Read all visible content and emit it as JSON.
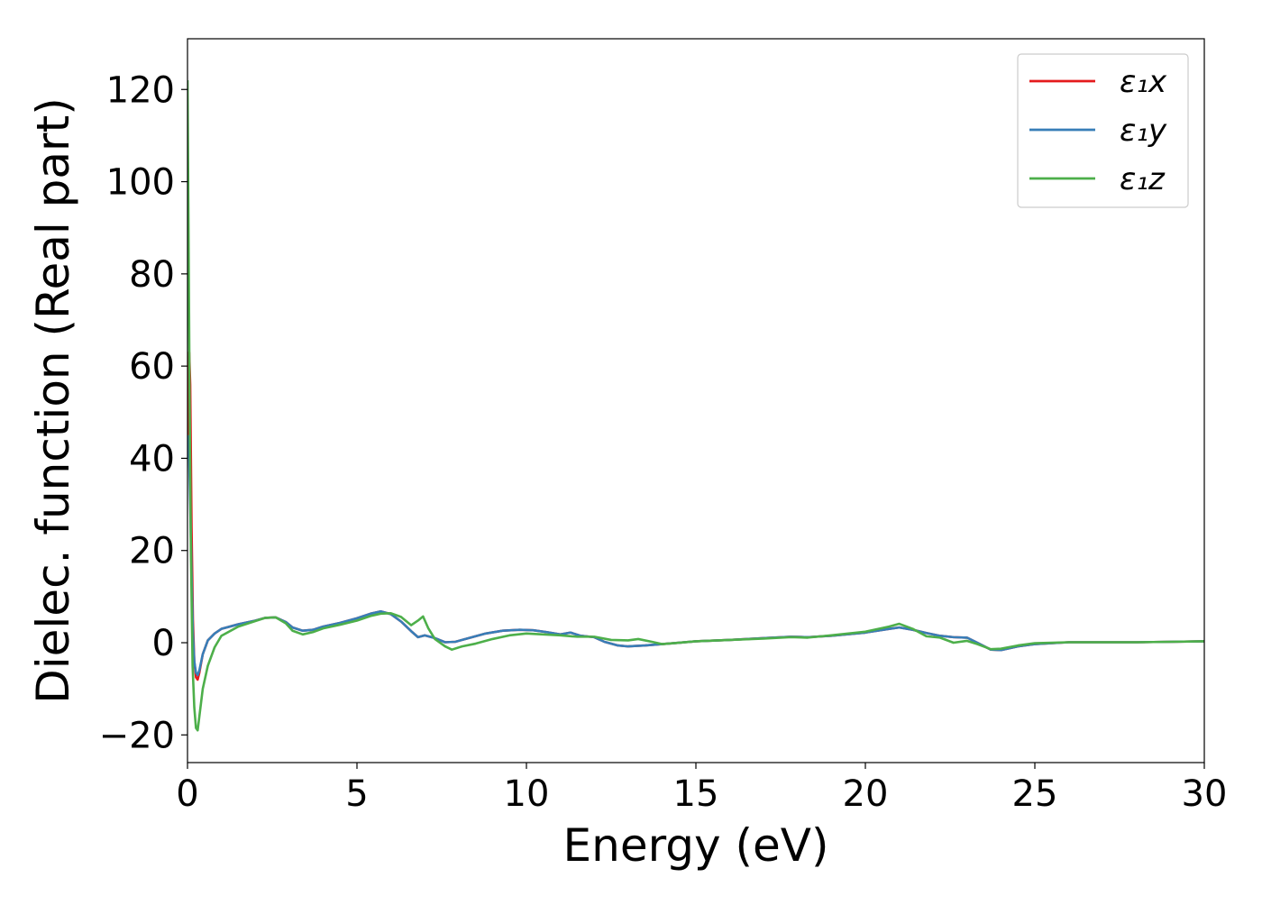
{
  "chart_data": {
    "type": "line",
    "title": "",
    "xlabel": "Energy (eV)",
    "ylabel": "Dielec. function (Real part)",
    "xlim": [
      0,
      30
    ],
    "ylim": [
      -26,
      131
    ],
    "xticks": [
      0,
      5,
      10,
      15,
      20,
      25,
      30
    ],
    "xtick_labels": [
      "0",
      "5",
      "10",
      "15",
      "20",
      "25",
      "30"
    ],
    "yticks": [
      -20,
      0,
      20,
      40,
      60,
      80,
      100,
      120
    ],
    "ytick_labels": [
      "−20",
      "0",
      "20",
      "40",
      "60",
      "80",
      "100",
      "120"
    ],
    "grid": false,
    "legend_position": "top-right",
    "series": [
      {
        "name": "ε₁x",
        "color": "#e41a1c",
        "points": [
          [
            0.02,
            45
          ],
          [
            0.05,
            63
          ],
          [
            0.08,
            56
          ],
          [
            0.12,
            25
          ],
          [
            0.16,
            5
          ],
          [
            0.2,
            -4
          ],
          [
            0.25,
            -7.5
          ],
          [
            0.3,
            -8
          ],
          [
            0.35,
            -6.5
          ],
          [
            0.45,
            -2.5
          ],
          [
            0.6,
            0.5
          ],
          [
            0.8,
            2
          ],
          [
            1.0,
            3
          ],
          [
            1.5,
            4
          ],
          [
            2.0,
            4.8
          ],
          [
            2.3,
            5.4
          ],
          [
            2.6,
            5.5
          ],
          [
            2.9,
            4.5
          ],
          [
            3.1,
            3.3
          ],
          [
            3.4,
            2.6
          ],
          [
            3.7,
            2.8
          ],
          [
            4.0,
            3.5
          ],
          [
            4.5,
            4.3
          ],
          [
            5.0,
            5.3
          ],
          [
            5.4,
            6.3
          ],
          [
            5.7,
            6.8
          ],
          [
            6.0,
            6.2
          ],
          [
            6.3,
            4.6
          ],
          [
            6.6,
            2.5
          ],
          [
            6.8,
            1.2
          ],
          [
            7.0,
            1.6
          ],
          [
            7.3,
            1.0
          ],
          [
            7.6,
            0.1
          ],
          [
            7.9,
            0.2
          ],
          [
            8.3,
            1.0
          ],
          [
            8.8,
            2.0
          ],
          [
            9.3,
            2.6
          ],
          [
            9.8,
            2.8
          ],
          [
            10.2,
            2.7
          ],
          [
            10.6,
            2.3
          ],
          [
            11.0,
            1.8
          ],
          [
            11.3,
            2.2
          ],
          [
            11.6,
            1.5
          ],
          [
            12.0,
            1.2
          ],
          [
            12.3,
            0.2
          ],
          [
            12.7,
            -0.6
          ],
          [
            13.0,
            -0.8
          ],
          [
            13.5,
            -0.6
          ],
          [
            14.0,
            -0.3
          ],
          [
            14.5,
            0
          ],
          [
            15,
            0.3
          ],
          [
            16,
            0.6
          ],
          [
            17,
            1.0
          ],
          [
            17.8,
            1.3
          ],
          [
            18.3,
            1.2
          ],
          [
            19,
            1.5
          ],
          [
            20,
            2.2
          ],
          [
            20.7,
            3.0
          ],
          [
            21.0,
            3.3
          ],
          [
            21.4,
            2.8
          ],
          [
            21.8,
            2.1
          ],
          [
            22.2,
            1.5
          ],
          [
            22.6,
            1.2
          ],
          [
            23.0,
            1.1
          ],
          [
            23.3,
            0
          ],
          [
            23.7,
            -1.5
          ],
          [
            24.0,
            -1.6
          ],
          [
            24.5,
            -0.8
          ],
          [
            25.0,
            -0.3
          ],
          [
            26,
            0.1
          ],
          [
            27,
            0.1
          ],
          [
            28,
            0.1
          ],
          [
            29,
            0.2
          ],
          [
            30,
            0.3
          ]
        ]
      },
      {
        "name": "ε₁y",
        "color": "#377eb8",
        "points": [
          [
            0.02,
            45
          ],
          [
            0.05,
            40
          ],
          [
            0.08,
            30
          ],
          [
            0.12,
            15
          ],
          [
            0.16,
            2
          ],
          [
            0.2,
            -4
          ],
          [
            0.25,
            -6.5
          ],
          [
            0.3,
            -7
          ],
          [
            0.35,
            -6
          ],
          [
            0.45,
            -2.5
          ],
          [
            0.6,
            0.5
          ],
          [
            0.8,
            2
          ],
          [
            1.0,
            3
          ],
          [
            1.5,
            4
          ],
          [
            2.0,
            4.8
          ],
          [
            2.3,
            5.4
          ],
          [
            2.6,
            5.5
          ],
          [
            2.9,
            4.5
          ],
          [
            3.1,
            3.3
          ],
          [
            3.4,
            2.6
          ],
          [
            3.7,
            2.8
          ],
          [
            4.0,
            3.5
          ],
          [
            4.5,
            4.3
          ],
          [
            5.0,
            5.3
          ],
          [
            5.4,
            6.3
          ],
          [
            5.7,
            6.8
          ],
          [
            6.0,
            6.2
          ],
          [
            6.3,
            4.6
          ],
          [
            6.6,
            2.5
          ],
          [
            6.8,
            1.2
          ],
          [
            7.0,
            1.6
          ],
          [
            7.3,
            1.0
          ],
          [
            7.6,
            0.1
          ],
          [
            7.9,
            0.2
          ],
          [
            8.3,
            1.0
          ],
          [
            8.8,
            2.0
          ],
          [
            9.3,
            2.6
          ],
          [
            9.8,
            2.8
          ],
          [
            10.2,
            2.7
          ],
          [
            10.6,
            2.3
          ],
          [
            11.0,
            1.8
          ],
          [
            11.3,
            2.2
          ],
          [
            11.6,
            1.5
          ],
          [
            12.0,
            1.2
          ],
          [
            12.3,
            0.2
          ],
          [
            12.7,
            -0.6
          ],
          [
            13.0,
            -0.8
          ],
          [
            13.5,
            -0.6
          ],
          [
            14.0,
            -0.3
          ],
          [
            14.5,
            0
          ],
          [
            15,
            0.3
          ],
          [
            16,
            0.6
          ],
          [
            17,
            1.0
          ],
          [
            17.8,
            1.3
          ],
          [
            18.3,
            1.2
          ],
          [
            19,
            1.5
          ],
          [
            20,
            2.2
          ],
          [
            20.7,
            3.0
          ],
          [
            21.0,
            3.3
          ],
          [
            21.4,
            2.8
          ],
          [
            21.8,
            2.1
          ],
          [
            22.2,
            1.5
          ],
          [
            22.6,
            1.2
          ],
          [
            23.0,
            1.1
          ],
          [
            23.3,
            0
          ],
          [
            23.7,
            -1.5
          ],
          [
            24.0,
            -1.6
          ],
          [
            24.5,
            -0.8
          ],
          [
            25.0,
            -0.3
          ],
          [
            26,
            0.1
          ],
          [
            27,
            0.1
          ],
          [
            28,
            0.1
          ],
          [
            29,
            0.2
          ],
          [
            30,
            0.3
          ]
        ]
      },
      {
        "name": "ε₁z",
        "color": "#4daf4a",
        "points": [
          [
            0.0,
            122
          ],
          [
            0.03,
            90
          ],
          [
            0.06,
            55
          ],
          [
            0.1,
            20
          ],
          [
            0.15,
            -5
          ],
          [
            0.2,
            -14
          ],
          [
            0.25,
            -18.5
          ],
          [
            0.3,
            -19
          ],
          [
            0.35,
            -16
          ],
          [
            0.45,
            -10
          ],
          [
            0.6,
            -5
          ],
          [
            0.8,
            -1
          ],
          [
            1.0,
            1.5
          ],
          [
            1.5,
            3.5
          ],
          [
            2.0,
            4.7
          ],
          [
            2.3,
            5.4
          ],
          [
            2.6,
            5.5
          ],
          [
            2.9,
            4.2
          ],
          [
            3.1,
            2.6
          ],
          [
            3.4,
            1.8
          ],
          [
            3.7,
            2.3
          ],
          [
            4.0,
            3.1
          ],
          [
            4.5,
            3.9
          ],
          [
            5.0,
            4.8
          ],
          [
            5.4,
            5.8
          ],
          [
            5.7,
            6.3
          ],
          [
            6.0,
            6.4
          ],
          [
            6.3,
            5.6
          ],
          [
            6.6,
            3.8
          ],
          [
            6.8,
            4.8
          ],
          [
            6.95,
            5.7
          ],
          [
            7.1,
            3.2
          ],
          [
            7.3,
            0.8
          ],
          [
            7.6,
            -0.8
          ],
          [
            7.8,
            -1.5
          ],
          [
            8.1,
            -0.8
          ],
          [
            8.5,
            -0.2
          ],
          [
            9.0,
            0.8
          ],
          [
            9.5,
            1.6
          ],
          [
            10.0,
            2.0
          ],
          [
            10.5,
            1.8
          ],
          [
            11.0,
            1.6
          ],
          [
            11.5,
            1.3
          ],
          [
            12.0,
            1.3
          ],
          [
            12.5,
            0.6
          ],
          [
            13.0,
            0.5
          ],
          [
            13.3,
            0.8
          ],
          [
            13.7,
            0.2
          ],
          [
            14.0,
            -0.3
          ],
          [
            14.5,
            0
          ],
          [
            15,
            0.3
          ],
          [
            16,
            0.6
          ],
          [
            17,
            0.9
          ],
          [
            17.8,
            1.2
          ],
          [
            18.3,
            1.1
          ],
          [
            19,
            1.6
          ],
          [
            20,
            2.4
          ],
          [
            20.7,
            3.5
          ],
          [
            21.0,
            4.1
          ],
          [
            21.4,
            3.0
          ],
          [
            21.8,
            1.4
          ],
          [
            22.2,
            1.1
          ],
          [
            22.6,
            0
          ],
          [
            23.0,
            0.4
          ],
          [
            23.3,
            -0.3
          ],
          [
            23.7,
            -1.4
          ],
          [
            24.0,
            -1.3
          ],
          [
            24.5,
            -0.6
          ],
          [
            25.0,
            -0.1
          ],
          [
            26,
            0.1
          ],
          [
            27,
            0.1
          ],
          [
            28,
            0.1
          ],
          [
            29,
            0.2
          ],
          [
            30,
            0.3
          ]
        ]
      }
    ]
  }
}
